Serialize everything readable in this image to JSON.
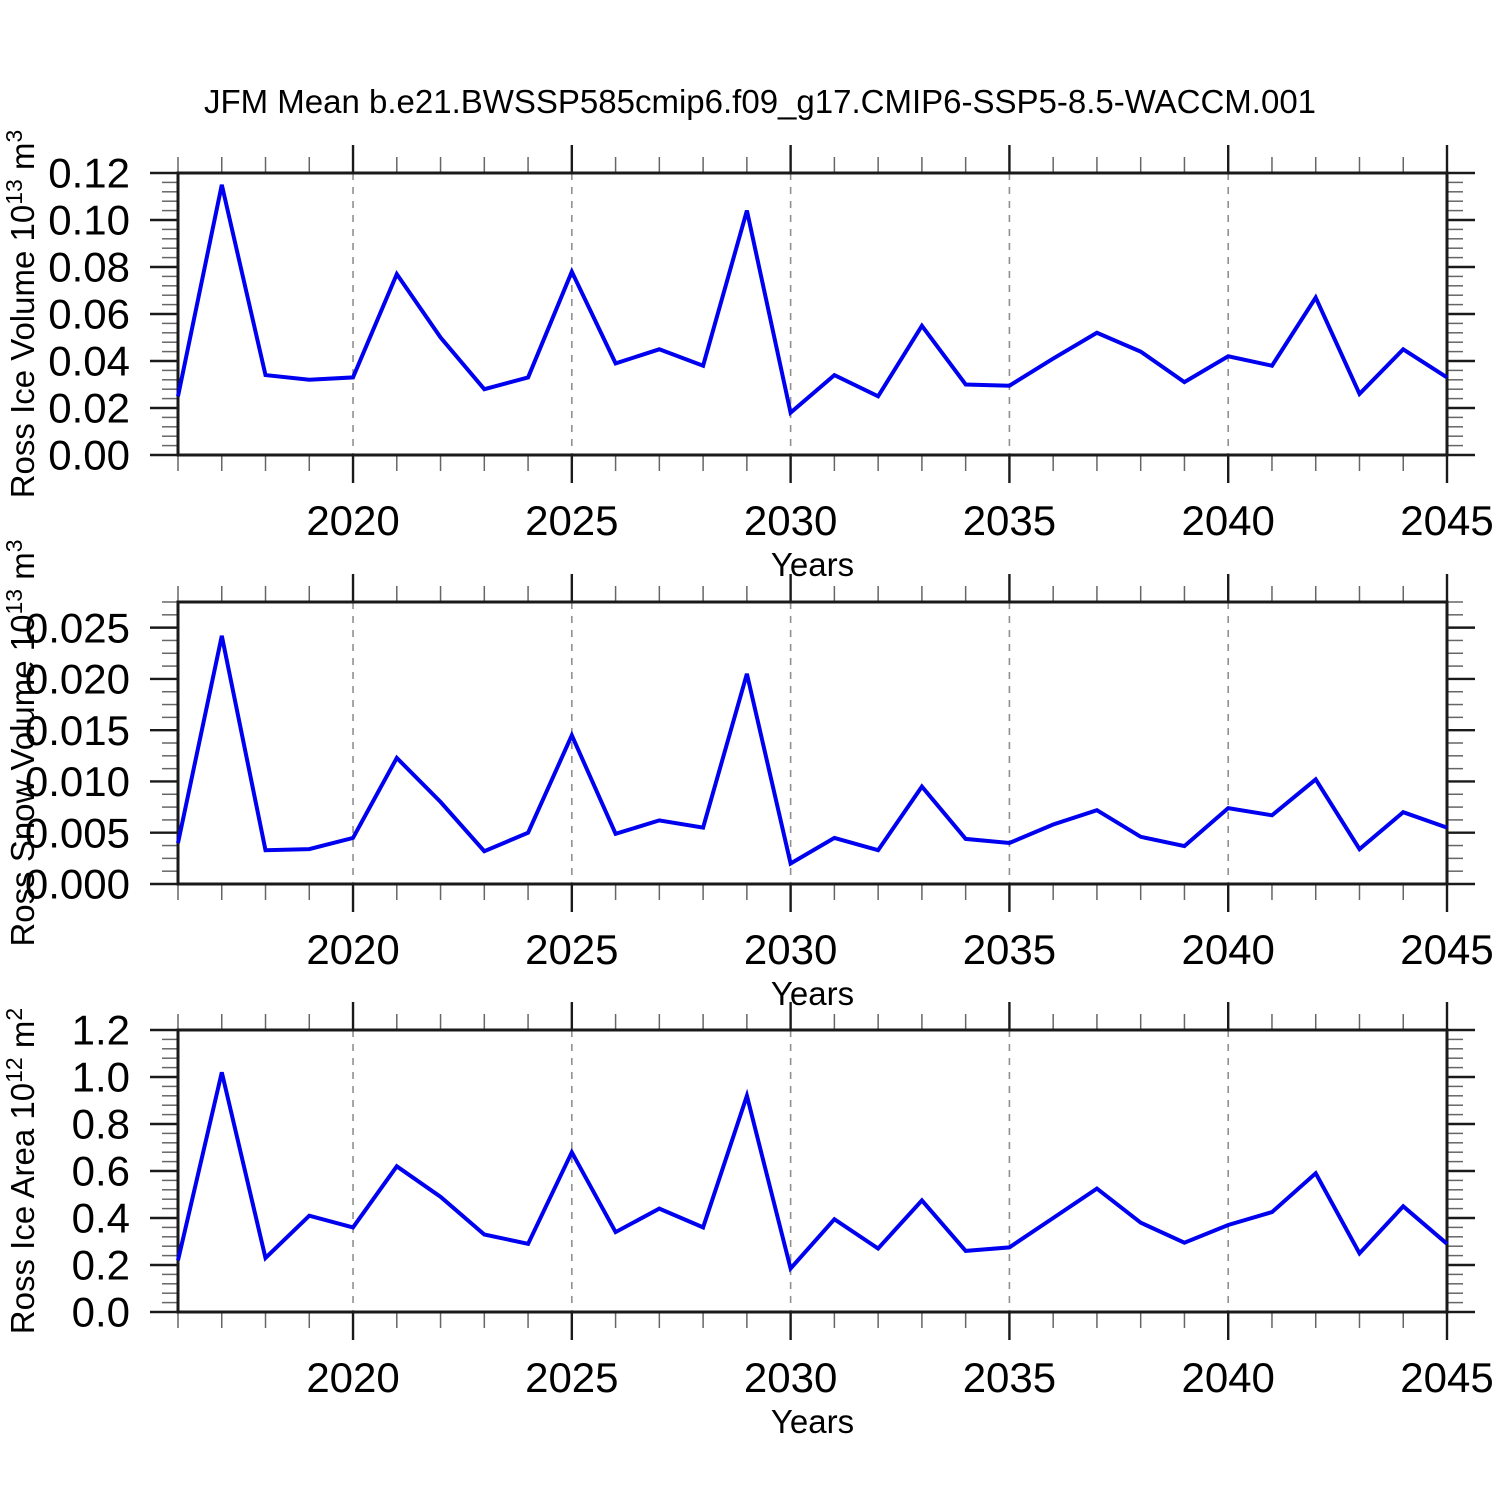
{
  "title": "JFM Mean b.e21.BWSSP585cmip6.f09_g17.CMIP6-SSP5-8.5-WACCM.001",
  "colors": {
    "line": "#0000f0",
    "axis": "#1a1a1a",
    "minor_tick": "#666666",
    "grid": "#909090",
    "background": "#ffffff",
    "text": "#000000"
  },
  "chart_data": [
    {
      "type": "line",
      "ylabel": "Ross Ice Volume 10^13 m^3",
      "ylabel_rich": [
        {
          "t": "Ross Ice Volume 10"
        },
        {
          "t": "13",
          "sup": true
        },
        {
          "t": " m"
        },
        {
          "t": "3",
          "sup": true
        }
      ],
      "xlabel": "Years",
      "x": [
        2016,
        2017,
        2018,
        2019,
        2020,
        2021,
        2022,
        2023,
        2024,
        2025,
        2026,
        2027,
        2028,
        2029,
        2030,
        2031,
        2032,
        2033,
        2034,
        2035,
        2036,
        2037,
        2038,
        2039,
        2040,
        2041,
        2042,
        2043,
        2044,
        2045
      ],
      "values": [
        0.025,
        0.115,
        0.034,
        0.032,
        0.033,
        0.077,
        0.05,
        0.028,
        0.033,
        0.078,
        0.039,
        0.045,
        0.038,
        0.104,
        0.018,
        0.034,
        0.025,
        0.055,
        0.03,
        0.0295,
        0.041,
        0.052,
        0.044,
        0.031,
        0.042,
        0.038,
        0.067,
        0.026,
        0.045,
        0.033
      ],
      "xlim": [
        2016,
        2045
      ],
      "ylim": [
        0,
        0.12
      ],
      "yticks": [
        0,
        0.02,
        0.04,
        0.06,
        0.08,
        0.1,
        0.12
      ],
      "ytick_labels": [
        "0.00",
        "0.02",
        "0.04",
        "0.06",
        "0.08",
        "0.10",
        "0.12"
      ],
      "yminor": 0.004,
      "xticks": [
        2020,
        2025,
        2030,
        2035,
        2040,
        2045
      ],
      "xtick_labels": [
        "2020",
        "2025",
        "2030",
        "2035",
        "2040",
        "2045"
      ],
      "xminor": 1,
      "grid_x": [
        2020,
        2025,
        2030,
        2035,
        2040
      ],
      "grid": "vertical-dashed",
      "legend": "none"
    },
    {
      "type": "line",
      "ylabel": "Ross Snow Volume 10^13 m^3",
      "ylabel_rich": [
        {
          "t": "Ross Snow Volume 10"
        },
        {
          "t": "13",
          "sup": true
        },
        {
          "t": " m"
        },
        {
          "t": "3",
          "sup": true
        }
      ],
      "xlabel": "Years",
      "x": [
        2016,
        2017,
        2018,
        2019,
        2020,
        2021,
        2022,
        2023,
        2024,
        2025,
        2026,
        2027,
        2028,
        2029,
        2030,
        2031,
        2032,
        2033,
        2034,
        2035,
        2036,
        2037,
        2038,
        2039,
        2040,
        2041,
        2042,
        2043,
        2044,
        2045
      ],
      "values": [
        0.004,
        0.0242,
        0.0033,
        0.0034,
        0.0045,
        0.0123,
        0.008,
        0.0032,
        0.005,
        0.0145,
        0.0049,
        0.0062,
        0.0055,
        0.0205,
        0.002,
        0.0045,
        0.0033,
        0.0095,
        0.0044,
        0.004,
        0.0058,
        0.0072,
        0.0046,
        0.0037,
        0.0074,
        0.0067,
        0.0102,
        0.0034,
        0.007,
        0.0055
      ],
      "xlim": [
        2016,
        2045
      ],
      "ylim": [
        0,
        0.0275
      ],
      "yticks": [
        0,
        0.005,
        0.01,
        0.015,
        0.02,
        0.025
      ],
      "ytick_labels": [
        "0.000",
        "0.005",
        "0.010",
        "0.015",
        "0.020",
        "0.025"
      ],
      "yminor": 0.00125,
      "xticks": [
        2020,
        2025,
        2030,
        2035,
        2040,
        2045
      ],
      "xtick_labels": [
        "2020",
        "2025",
        "2030",
        "2035",
        "2040",
        "2045"
      ],
      "xminor": 1,
      "grid_x": [
        2020,
        2025,
        2030,
        2035,
        2040
      ],
      "grid": "vertical-dashed",
      "legend": "none"
    },
    {
      "type": "line",
      "ylabel": "Ross Ice Area 10^12 m^2",
      "ylabel_rich": [
        {
          "t": "Ross Ice Area 10"
        },
        {
          "t": "12",
          "sup": true
        },
        {
          "t": " m"
        },
        {
          "t": "2",
          "sup": true
        }
      ],
      "xlabel": "Years",
      "x": [
        2016,
        2017,
        2018,
        2019,
        2020,
        2021,
        2022,
        2023,
        2024,
        2025,
        2026,
        2027,
        2028,
        2029,
        2030,
        2031,
        2032,
        2033,
        2034,
        2035,
        2036,
        2037,
        2038,
        2039,
        2040,
        2041,
        2042,
        2043,
        2044,
        2045
      ],
      "values": [
        0.22,
        1.02,
        0.23,
        0.41,
        0.36,
        0.62,
        0.49,
        0.33,
        0.29,
        0.68,
        0.34,
        0.44,
        0.36,
        0.92,
        0.185,
        0.395,
        0.27,
        0.475,
        0.26,
        0.275,
        0.4,
        0.525,
        0.38,
        0.295,
        0.37,
        0.425,
        0.59,
        0.25,
        0.45,
        0.29
      ],
      "xlim": [
        2016,
        2045
      ],
      "ylim": [
        0,
        1.2
      ],
      "yticks": [
        0,
        0.2,
        0.4,
        0.6,
        0.8,
        1.0,
        1.2
      ],
      "ytick_labels": [
        "0.0",
        "0.2",
        "0.4",
        "0.6",
        "0.8",
        "1.0",
        "1.2"
      ],
      "yminor": 0.04,
      "xticks": [
        2020,
        2025,
        2030,
        2035,
        2040,
        2045
      ],
      "xtick_labels": [
        "2020",
        "2025",
        "2030",
        "2035",
        "2040",
        "2045"
      ],
      "xminor": 1,
      "grid_x": [
        2020,
        2025,
        2030,
        2035,
        2040
      ],
      "grid": "vertical-dashed",
      "legend": "none"
    }
  ]
}
